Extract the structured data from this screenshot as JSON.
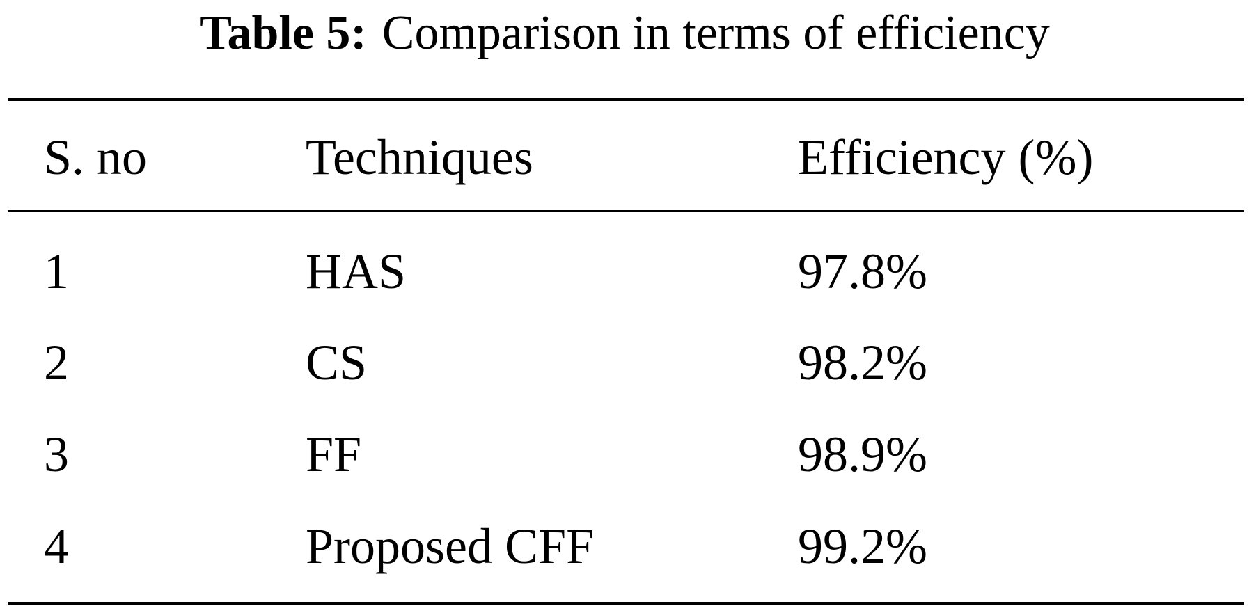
{
  "caption": {
    "label": "Table 5:",
    "text": "Comparison in terms of efficiency"
  },
  "table": {
    "headers": [
      "S. no",
      "Techniques",
      "Efficiency (%)"
    ],
    "rows": [
      [
        "1",
        "HAS",
        "97.8%"
      ],
      [
        "2",
        "CS",
        "98.2%"
      ],
      [
        "3",
        "FF",
        "98.9%"
      ],
      [
        "4",
        "Proposed CFF",
        "99.2%"
      ]
    ]
  }
}
